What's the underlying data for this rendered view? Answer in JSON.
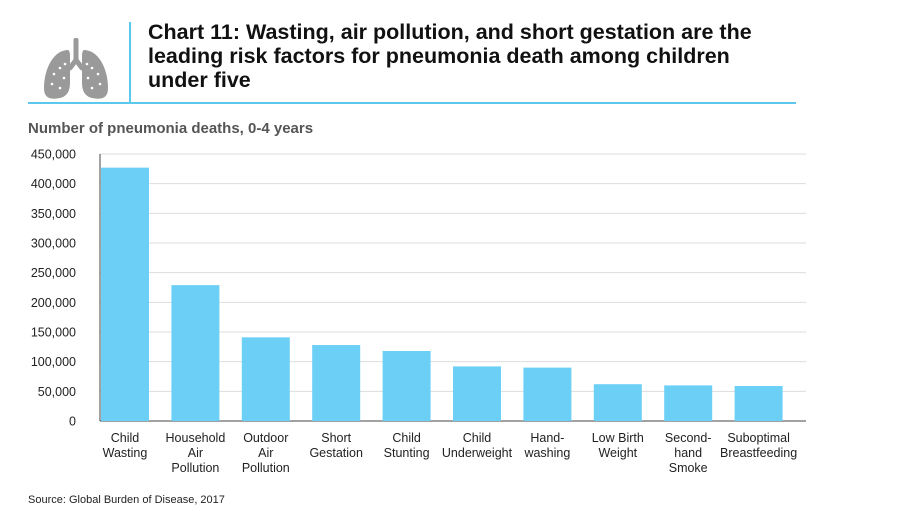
{
  "title": "Chart 11: Wasting, air pollution, and short gestation are the leading risk factors for pneumonia death among children under five",
  "icon": "lungs-icon",
  "colors": {
    "bar": "#6ccff6",
    "accent": "#5bc8ec",
    "grid": "#dddddd"
  },
  "chart_data": {
    "type": "bar",
    "title": "Chart 11: Wasting, air pollution, and short gestation are the leading risk factors for pneumonia death among children under five",
    "ylabel": "Number of pneumonia deaths, 0-4 years",
    "xlabel": "",
    "ylim": [
      0,
      450000
    ],
    "yticks": [
      0,
      50000,
      100000,
      150000,
      200000,
      250000,
      300000,
      350000,
      400000,
      450000
    ],
    "ytick_labels": [
      "0",
      "50,000",
      "100,000",
      "150,000",
      "200,000",
      "250,000",
      "300,000",
      "350,000",
      "400,000",
      "450,000"
    ],
    "categories": [
      [
        "Child",
        "Wasting"
      ],
      [
        "Household",
        "Air",
        "Pollution"
      ],
      [
        "Outdoor",
        "Air",
        "Pollution"
      ],
      [
        "Short",
        "Gestation"
      ],
      [
        "Child",
        "Stunting"
      ],
      [
        "Child",
        "Underweight"
      ],
      [
        "Hand-",
        "washing"
      ],
      [
        "Low Birth",
        "Weight"
      ],
      [
        "Second-",
        "hand",
        "Smoke"
      ],
      [
        "Suboptimal",
        "Breastfeeding"
      ]
    ],
    "values": [
      427000,
      229000,
      141000,
      128000,
      118000,
      92000,
      90000,
      62000,
      60000,
      59000
    ],
    "grid": true
  },
  "source": "Source: Global Burden of Disease, 2017"
}
